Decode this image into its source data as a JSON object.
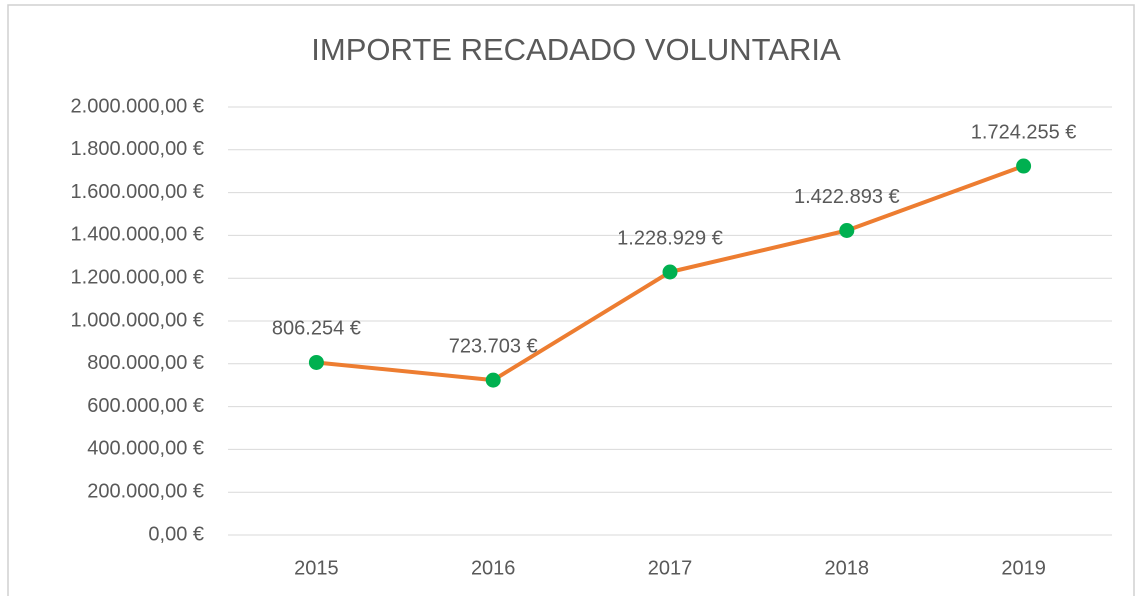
{
  "chart_data": {
    "type": "line",
    "title": "IMPORTE RECADADO VOLUNTARIA",
    "categories": [
      "2015",
      "2016",
      "2017",
      "2018",
      "2019"
    ],
    "values": [
      806254,
      723703,
      1228929,
      1422893,
      1724255
    ],
    "value_labels": [
      "806.254 €",
      "723.703 €",
      "1.228.929 €",
      "1.422.893 €",
      "1.724.255 €"
    ],
    "color": "#ed7d31",
    "marker_color": "#00b050",
    "ylim": [
      0,
      2000000
    ],
    "yticks": [
      {
        "value": 0,
        "label": "0,00 €"
      },
      {
        "value": 200000,
        "label": "200.000,00 €"
      },
      {
        "value": 400000,
        "label": "400.000,00 €"
      },
      {
        "value": 600000,
        "label": "600.000,00 €"
      },
      {
        "value": 800000,
        "label": "800.000,00 €"
      },
      {
        "value": 1000000,
        "label": "1.000.000,00 €"
      },
      {
        "value": 1200000,
        "label": "1.200.000,00 €"
      },
      {
        "value": 1400000,
        "label": "1.400.000,00 €"
      },
      {
        "value": 1600000,
        "label": "1.600.000,00 €"
      },
      {
        "value": 1800000,
        "label": "1.800.000,00 €"
      },
      {
        "value": 2000000,
        "label": "2.000.000,00 €"
      }
    ],
    "grid": true
  }
}
